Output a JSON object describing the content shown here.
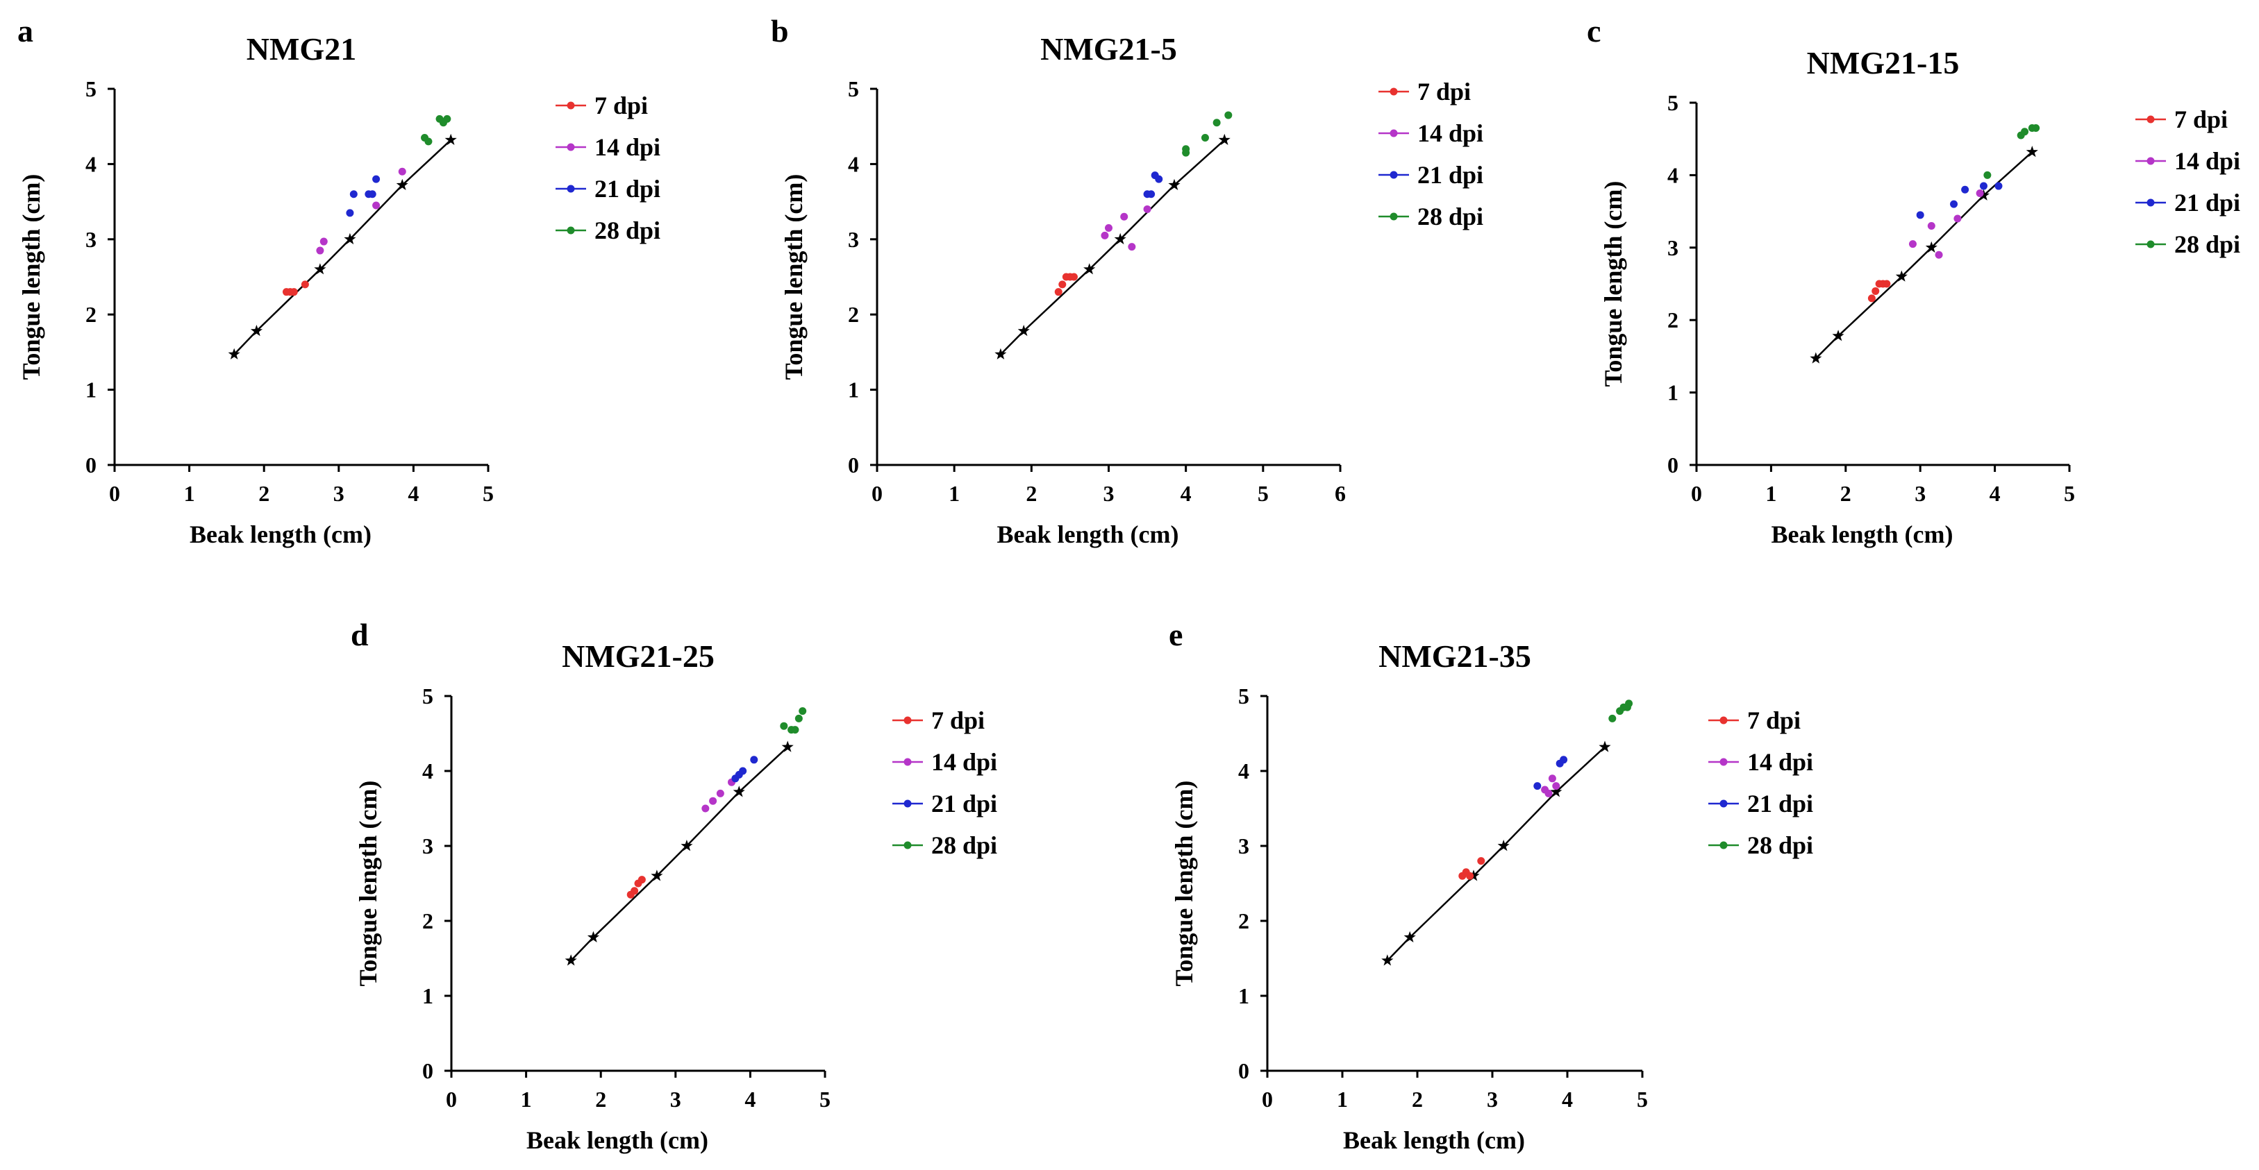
{
  "colors": {
    "7 dpi": "#e8322f",
    "14 dpi": "#b535c8",
    "21 dpi": "#1f28d0",
    "28 dpi": "#1f8c2b",
    "reference": "#000000"
  },
  "legend_names": [
    "7 dpi",
    "14 dpi",
    "21 dpi",
    "28 dpi"
  ],
  "chart_data": [
    {
      "panel": "a",
      "type": "scatter",
      "title": "NMG21",
      "xlabel": "Beak length (cm)",
      "ylabel": "Tongue length (cm)",
      "xlim": [
        0,
        5
      ],
      "ylim": [
        0,
        5
      ],
      "xticks": [
        "0",
        "1",
        "2",
        "3",
        "4",
        "5"
      ],
      "yticks": [
        "0",
        "1",
        "2",
        "3",
        "4",
        "5"
      ],
      "legend_position": "right",
      "reference_line": [
        [
          1.6,
          1.47
        ],
        [
          1.9,
          1.78
        ],
        [
          2.75,
          2.6
        ],
        [
          3.15,
          3.0
        ],
        [
          3.85,
          3.72
        ],
        [
          4.5,
          4.32
        ]
      ],
      "series": [
        {
          "name": "7 dpi",
          "points": [
            [
              2.3,
              2.3
            ],
            [
              2.35,
              2.3
            ],
            [
              2.4,
              2.3
            ],
            [
              2.55,
              2.4
            ]
          ]
        },
        {
          "name": "14 dpi",
          "points": [
            [
              2.75,
              2.85
            ],
            [
              2.8,
              2.97
            ],
            [
              3.5,
              3.45
            ],
            [
              3.85,
              3.9
            ]
          ]
        },
        {
          "name": "21 dpi",
          "points": [
            [
              3.15,
              3.35
            ],
            [
              3.2,
              3.6
            ],
            [
              3.4,
              3.6
            ],
            [
              3.45,
              3.6
            ],
            [
              3.5,
              3.8
            ]
          ]
        },
        {
          "name": "28 dpi",
          "points": [
            [
              4.15,
              4.35
            ],
            [
              4.2,
              4.3
            ],
            [
              4.35,
              4.6
            ],
            [
              4.4,
              4.55
            ],
            [
              4.45,
              4.6
            ]
          ]
        }
      ]
    },
    {
      "panel": "b",
      "type": "scatter",
      "title": "NMG21-5",
      "xlabel": "Beak length (cm)",
      "ylabel": "Tongue length (cm)",
      "xlim": [
        0,
        6
      ],
      "ylim": [
        0,
        5
      ],
      "xticks": [
        "0",
        "1",
        "2",
        "3",
        "4",
        "5",
        "6"
      ],
      "yticks": [
        "0",
        "1",
        "2",
        "3",
        "4",
        "5"
      ],
      "legend_position": "right",
      "reference_line": [
        [
          1.6,
          1.47
        ],
        [
          1.9,
          1.78
        ],
        [
          2.75,
          2.6
        ],
        [
          3.15,
          3.0
        ],
        [
          3.85,
          3.72
        ],
        [
          4.5,
          4.32
        ]
      ],
      "series": [
        {
          "name": "7 dpi",
          "points": [
            [
              2.35,
              2.3
            ],
            [
              2.4,
              2.4
            ],
            [
              2.45,
              2.5
            ],
            [
              2.5,
              2.5
            ],
            [
              2.55,
              2.5
            ]
          ]
        },
        {
          "name": "14 dpi",
          "points": [
            [
              2.95,
              3.05
            ],
            [
              3.0,
              3.15
            ],
            [
              3.2,
              3.3
            ],
            [
              3.3,
              2.9
            ],
            [
              3.5,
              3.4
            ]
          ]
        },
        {
          "name": "21 dpi",
          "points": [
            [
              3.5,
              3.6
            ],
            [
              3.55,
              3.6
            ],
            [
              3.6,
              3.85
            ],
            [
              3.65,
              3.8
            ]
          ]
        },
        {
          "name": "28 dpi",
          "points": [
            [
              4.0,
              4.15
            ],
            [
              4.0,
              4.2
            ],
            [
              4.25,
              4.35
            ],
            [
              4.4,
              4.55
            ],
            [
              4.55,
              4.65
            ]
          ]
        }
      ]
    },
    {
      "panel": "c",
      "type": "scatter",
      "title": "NMG21-15",
      "xlabel": "Beak length (cm)",
      "ylabel": "Tongue length (cm)",
      "xlim": [
        0,
        5
      ],
      "ylim": [
        0,
        5
      ],
      "xticks": [
        "0",
        "1",
        "2",
        "3",
        "4",
        "5"
      ],
      "yticks": [
        "0",
        "1",
        "2",
        "3",
        "4",
        "5"
      ],
      "legend_position": "right",
      "reference_line": [
        [
          1.6,
          1.47
        ],
        [
          1.9,
          1.78
        ],
        [
          2.75,
          2.6
        ],
        [
          3.15,
          3.0
        ],
        [
          3.85,
          3.72
        ],
        [
          4.5,
          4.32
        ]
      ],
      "series": [
        {
          "name": "7 dpi",
          "points": [
            [
              2.35,
              2.3
            ],
            [
              2.4,
              2.4
            ],
            [
              2.45,
              2.5
            ],
            [
              2.5,
              2.5
            ],
            [
              2.55,
              2.5
            ]
          ]
        },
        {
          "name": "14 dpi",
          "points": [
            [
              2.9,
              3.05
            ],
            [
              3.15,
              3.3
            ],
            [
              3.25,
              2.9
            ],
            [
              3.5,
              3.4
            ],
            [
              3.8,
              3.75
            ]
          ]
        },
        {
          "name": "21 dpi",
          "points": [
            [
              3.0,
              3.45
            ],
            [
              3.45,
              3.6
            ],
            [
              3.6,
              3.8
            ],
            [
              3.85,
              3.85
            ],
            [
              4.05,
              3.85
            ]
          ]
        },
        {
          "name": "28 dpi",
          "points": [
            [
              3.9,
              4.0
            ],
            [
              4.35,
              4.55
            ],
            [
              4.4,
              4.6
            ],
            [
              4.5,
              4.65
            ],
            [
              4.55,
              4.65
            ]
          ]
        }
      ]
    },
    {
      "panel": "d",
      "type": "scatter",
      "title": "NMG21-25",
      "xlabel": "Beak length (cm)",
      "ylabel": "Tongue length (cm)",
      "xlim": [
        0,
        5
      ],
      "ylim": [
        0,
        5
      ],
      "xticks": [
        "0",
        "1",
        "2",
        "3",
        "4",
        "5"
      ],
      "yticks": [
        "0",
        "1",
        "2",
        "3",
        "4",
        "5"
      ],
      "legend_position": "right",
      "reference_line": [
        [
          1.6,
          1.47
        ],
        [
          1.9,
          1.78
        ],
        [
          2.75,
          2.6
        ],
        [
          3.15,
          3.0
        ],
        [
          3.85,
          3.72
        ],
        [
          4.5,
          4.32
        ]
      ],
      "series": [
        {
          "name": "7 dpi",
          "points": [
            [
              2.4,
              2.35
            ],
            [
              2.45,
              2.4
            ],
            [
              2.5,
              2.5
            ],
            [
              2.55,
              2.55
            ]
          ]
        },
        {
          "name": "14 dpi",
          "points": [
            [
              3.4,
              3.5
            ],
            [
              3.5,
              3.6
            ],
            [
              3.6,
              3.7
            ],
            [
              3.75,
              3.85
            ]
          ]
        },
        {
          "name": "21 dpi",
          "points": [
            [
              3.8,
              3.9
            ],
            [
              3.85,
              3.95
            ],
            [
              3.9,
              4.0
            ],
            [
              4.05,
              4.15
            ]
          ]
        },
        {
          "name": "28 dpi",
          "points": [
            [
              4.45,
              4.6
            ],
            [
              4.55,
              4.55
            ],
            [
              4.6,
              4.55
            ],
            [
              4.65,
              4.7
            ],
            [
              4.7,
              4.8
            ]
          ]
        }
      ]
    },
    {
      "panel": "e",
      "type": "scatter",
      "title": "NMG21-35",
      "xlabel": "Beak length (cm)",
      "ylabel": "Tongue length (cm)",
      "xlim": [
        0,
        5
      ],
      "ylim": [
        0,
        5
      ],
      "xticks": [
        "0",
        "1",
        "2",
        "3",
        "4",
        "5"
      ],
      "yticks": [
        "0",
        "1",
        "2",
        "3",
        "4",
        "5"
      ],
      "legend_position": "right",
      "reference_line": [
        [
          1.6,
          1.47
        ],
        [
          1.9,
          1.78
        ],
        [
          2.75,
          2.6
        ],
        [
          3.15,
          3.0
        ],
        [
          3.85,
          3.72
        ],
        [
          4.5,
          4.32
        ]
      ],
      "series": [
        {
          "name": "7 dpi",
          "points": [
            [
              2.6,
              2.6
            ],
            [
              2.65,
              2.65
            ],
            [
              2.7,
              2.6
            ],
            [
              2.85,
              2.8
            ]
          ]
        },
        {
          "name": "14 dpi",
          "points": [
            [
              3.7,
              3.75
            ],
            [
              3.75,
              3.7
            ],
            [
              3.8,
              3.9
            ],
            [
              3.85,
              3.8
            ]
          ]
        },
        {
          "name": "21 dpi",
          "points": [
            [
              3.6,
              3.8
            ],
            [
              3.9,
              4.1
            ],
            [
              3.95,
              4.15
            ]
          ]
        },
        {
          "name": "28 dpi",
          "points": [
            [
              4.6,
              4.7
            ],
            [
              4.7,
              4.8
            ],
            [
              4.75,
              4.85
            ],
            [
              4.8,
              4.85
            ],
            [
              4.82,
              4.9
            ]
          ]
        }
      ]
    }
  ]
}
